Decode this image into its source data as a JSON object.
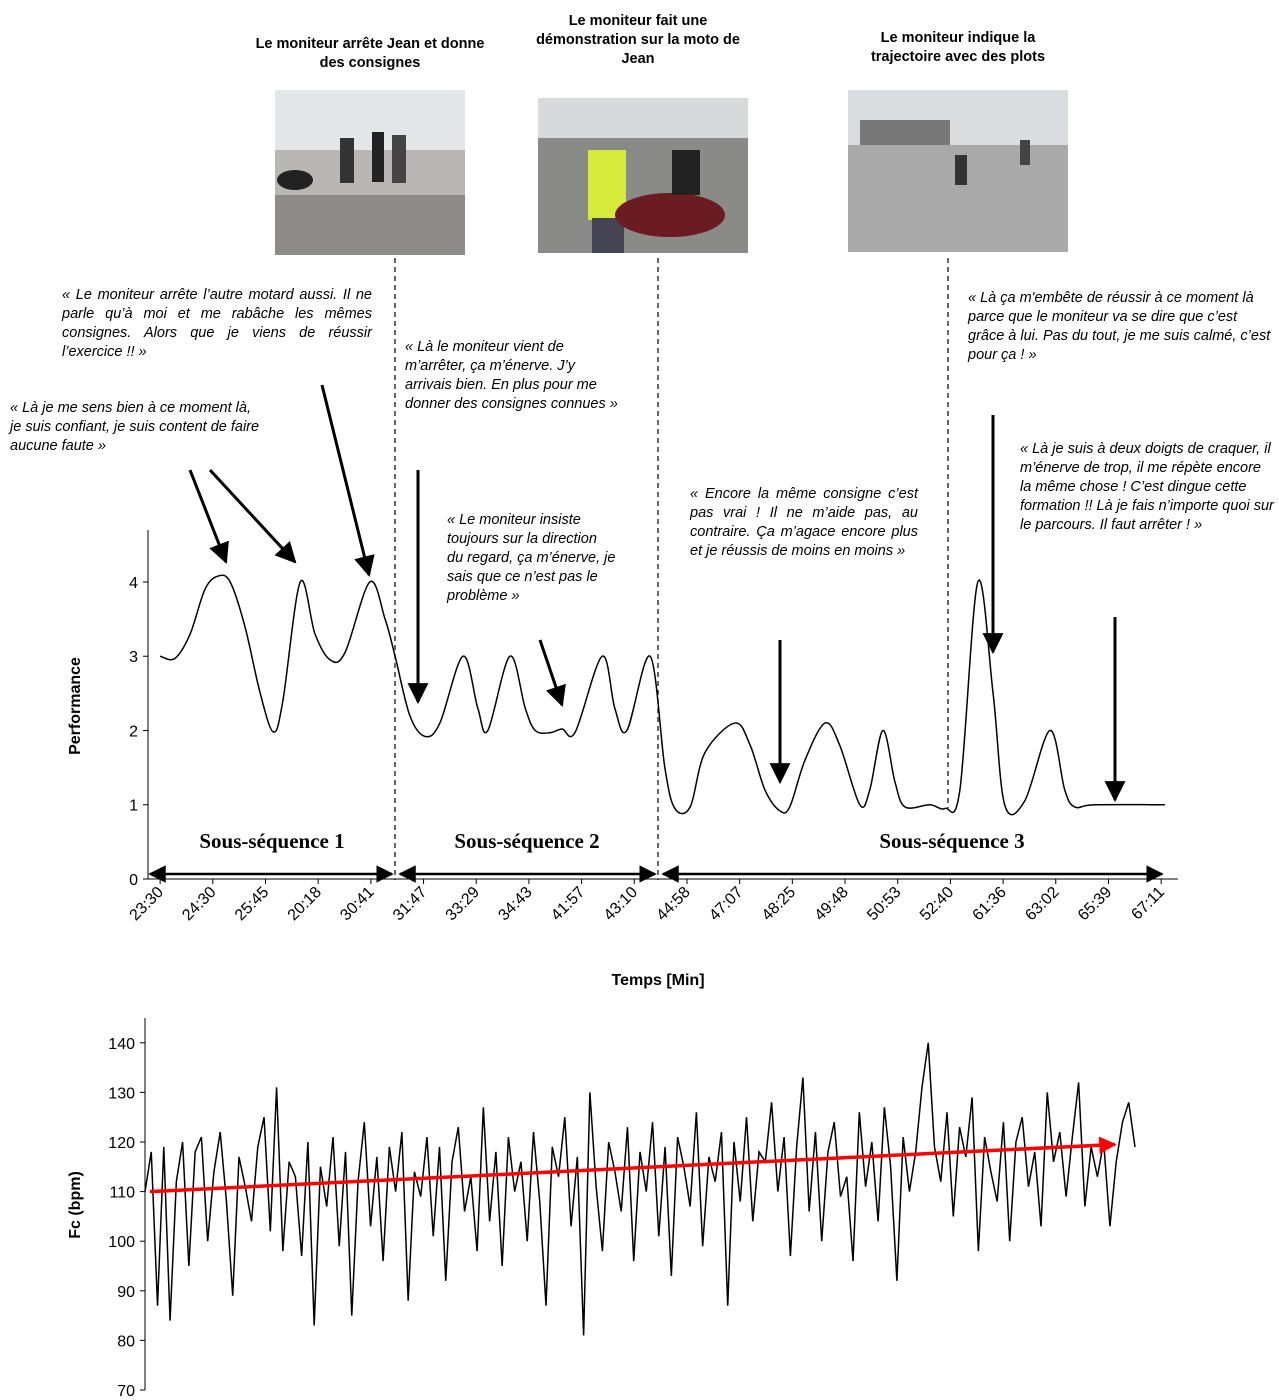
{
  "chart_data": [
    {
      "type": "line",
      "color": "#000000",
      "photo_captions": [
        "Le moniteur arrête Jean et donne des consignes",
        "Le moniteur fait une démonstration sur la moto de Jean",
        "Le moniteur indique la trajectoire avec des plots"
      ],
      "annotations": [
        "« Le moniteur arrête l’autre motard aussi. Il ne parle qu’à moi et me rabâche les mêmes consignes. Alors que je viens de réussir l’exercice !! »",
        "« Là je me sens bien à ce moment là, je suis confiant, je suis content de faire aucune faute »",
        "« Là le moniteur vient de m’arrêter, ça m’énerve. J’y arrivais bien. En plus pour me donner des consignes connues »",
        "« Le moniteur insiste toujours sur la direction du regard, ça m’énerve, je sais que ce n’est pas le problème »",
        "« Encore la même consigne c’est pas vrai ! Il ne m’aide pas, au contraire. Ça m’agace encore plus et je réussis de moins en moins »",
        "« Là ça m'embête de réussir à ce moment là parce que le moniteur va se dire que c’est grâce à lui. Pas du tout, je me suis calmé, c’est pour ça ! »",
        "« Là je suis à deux doigts de craquer, il m’énerve de trop, il me répète encore la même chose ! C’est dingue cette formation !! Là je fais n’importe quoi sur le parcours. Il faut arrêter ! »"
      ],
      "segments": [
        "Sous-séquence 1",
        "Sous-séquence 2",
        "Sous-séquence 3"
      ],
      "y_label": "Performance",
      "x_label": "Temps [Min]",
      "x": [
        0,
        0.28,
        0.57,
        0.85,
        1.1,
        1.33,
        1.61,
        1.9,
        2.15,
        2.33,
        2.66,
        2.94,
        3.23,
        3.51,
        3.98,
        4.27,
        4.46,
        4.74,
        5.03,
        5.31,
        5.75,
        6.03,
        6.22,
        6.64,
        6.93,
        7.12,
        7.4,
        7.63,
        7.88,
        8.39,
        8.63,
        8.86,
        9.3,
        9.58,
        9.77,
        10.06,
        10.34,
        10.91,
        11.2,
        11.48,
        11.76,
        11.95,
        12.24,
        12.62,
        12.9,
        13.28,
        13.47,
        13.72,
        13.95,
        14.14,
        14.61,
        14.9,
        15.18,
        15.52,
        15.81,
        16.03,
        16.41,
        16.89,
        17.17,
        17.36,
        17.74,
        19.07
      ],
      "values": [
        3.0,
        2.97,
        3.3,
        3.9,
        4.08,
        4.0,
        3.4,
        2.5,
        1.98,
        2.4,
        4.0,
        3.3,
        2.95,
        3.05,
        4.0,
        3.5,
        3.0,
        2.2,
        1.92,
        2.1,
        3.0,
        2.3,
        2.0,
        3.0,
        2.3,
        2.0,
        1.97,
        2.02,
        1.98,
        3.0,
        2.3,
        2.0,
        3.0,
        1.5,
        0.95,
        0.97,
        1.7,
        2.1,
        1.8,
        1.2,
        0.92,
        0.97,
        1.6,
        2.1,
        1.8,
        1.0,
        1.2,
        2.0,
        1.3,
        0.97,
        1.0,
        0.95,
        1.2,
        4.0,
        2.5,
        1.0,
        1.05,
        2.0,
        1.2,
        0.97,
        1.0,
        1.0
      ],
      "xlim": [
        -0.23,
        19.32
      ],
      "xticks": [
        {
          "value": 0,
          "label": "23:30"
        },
        {
          "value": 1,
          "label": "24:30"
        },
        {
          "value": 2,
          "label": "25:45"
        },
        {
          "value": 3,
          "label": "20:18"
        },
        {
          "value": 4,
          "label": "30:41"
        },
        {
          "value": 5,
          "label": "31:47"
        },
        {
          "value": 6,
          "label": "33:29"
        },
        {
          "value": 7,
          "label": "34:43"
        },
        {
          "value": 8,
          "label": "41:57"
        },
        {
          "value": 9,
          "label": "43:10"
        },
        {
          "value": 10,
          "label": "44:58"
        },
        {
          "value": 11,
          "label": "47:07"
        },
        {
          "value": 12,
          "label": "48:25"
        },
        {
          "value": 13,
          "label": "49:48"
        },
        {
          "value": 14,
          "label": "50:53"
        },
        {
          "value": 15,
          "label": "52:40"
        },
        {
          "value": 16,
          "label": "61:36"
        },
        {
          "value": 17,
          "label": "63:02"
        },
        {
          "value": 18,
          "label": "65:39"
        },
        {
          "value": 19,
          "label": "67:11"
        }
      ],
      "ylim": [
        0,
        4.7
      ],
      "yticks": [
        0,
        1,
        2,
        3,
        4
      ]
    },
    {
      "type": "line",
      "color": "#000000",
      "y_label": "Fc (bpm)",
      "values": [
        110,
        118,
        87,
        119,
        84,
        112,
        120,
        95,
        118,
        121,
        100,
        114,
        122,
        108,
        89,
        117,
        111,
        104,
        119,
        125,
        102,
        131,
        98,
        116,
        113,
        97,
        120,
        83,
        115,
        107,
        121,
        99,
        118,
        85,
        112,
        124,
        103,
        117,
        96,
        119,
        110,
        122,
        88,
        114,
        109,
        121,
        101,
        119,
        92,
        116,
        123,
        106,
        113,
        98,
        127,
        104,
        118,
        95,
        121,
        110,
        116,
        100,
        122,
        108,
        87,
        119,
        113,
        125,
        103,
        117,
        81,
        130,
        111,
        98,
        120,
        114,
        106,
        123,
        96,
        118,
        110,
        124,
        101,
        119,
        93,
        121,
        115,
        107,
        126,
        99,
        117,
        112,
        122,
        87,
        120,
        108,
        125,
        104,
        118,
        116,
        128,
        110,
        121,
        97,
        119,
        133,
        106,
        122,
        100,
        118,
        124,
        109,
        113,
        96,
        126,
        111,
        120,
        104,
        127,
        115,
        92,
        121,
        110,
        118,
        131,
        140,
        119,
        112,
        126,
        105,
        123,
        117,
        129,
        98,
        121,
        114,
        108,
        124,
        100,
        120,
        125,
        111,
        118,
        103,
        130,
        116,
        122,
        109,
        121,
        132,
        107,
        119,
        113,
        120,
        103,
        116,
        124,
        128,
        119
      ],
      "trend": {
        "color": "#ff0000",
        "values": [
          110,
          119.5
        ]
      },
      "ylim": [
        70,
        145
      ],
      "yticks": [
        70,
        80,
        90,
        100,
        110,
        120,
        130,
        140
      ]
    }
  ]
}
